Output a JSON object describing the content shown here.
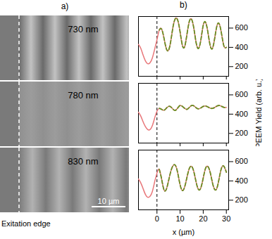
{
  "panels": {
    "a": {
      "label": "a)",
      "wavelengths": [
        "730 nm",
        "780 nm",
        "830 nm"
      ],
      "scale_bar": "10 µm",
      "edge_label": "Exitation edge"
    },
    "b": {
      "label": "b)"
    }
  },
  "chart_data": [
    {
      "type": "line",
      "tick_labels": "y",
      "edge_x": 0,
      "x": [
        -8,
        -7,
        -6,
        -5,
        -4,
        -3,
        -2,
        -1,
        0,
        1,
        2,
        3,
        4,
        5,
        6,
        7,
        8,
        9,
        10,
        11,
        12,
        13,
        14,
        15,
        16,
        17,
        18,
        19,
        20,
        21,
        22,
        23,
        24,
        25,
        26,
        27,
        28,
        29,
        30
      ],
      "xlim": [
        -8,
        31
      ],
      "xticks": [
        0,
        10,
        20,
        30
      ],
      "ylim": [
        100,
        720
      ],
      "yticks": [
        200,
        400,
        600
      ],
      "series": [
        {
          "color": "#e8777a",
          "line_style": "solid",
          "values": [
            430,
            390,
            320,
            260,
            230,
            240,
            290,
            380,
            480,
            580,
            590,
            500,
            390,
            370,
            470,
            620,
            700,
            680,
            560,
            420,
            410,
            540,
            670,
            690,
            590,
            440,
            390,
            480,
            630,
            660,
            560,
            420,
            390,
            500,
            630,
            640,
            530,
            410,
            400
          ]
        },
        {
          "color": "#6b8e23",
          "line_style": "dashed",
          "values": [
            null,
            null,
            null,
            null,
            null,
            null,
            null,
            null,
            null,
            580,
            590,
            500,
            390,
            370,
            470,
            620,
            700,
            680,
            560,
            420,
            410,
            540,
            670,
            690,
            590,
            440,
            390,
            480,
            630,
            660,
            560,
            420,
            390,
            500,
            630,
            640,
            530,
            410,
            400
          ]
        }
      ]
    },
    {
      "type": "line",
      "tick_labels": "y",
      "edge_x": 0,
      "ylabel": "PEEM Yield (arb. u.)",
      "x": [
        -8,
        -7,
        -6,
        -5,
        -4,
        -3,
        -2,
        -1,
        0,
        1,
        2,
        3,
        4,
        5,
        6,
        7,
        8,
        9,
        10,
        11,
        12,
        13,
        14,
        15,
        16,
        17,
        18,
        19,
        20,
        21,
        22,
        23,
        24,
        25,
        26,
        27,
        28,
        29,
        30
      ],
      "xlim": [
        -8,
        31
      ],
      "xticks": [
        0,
        10,
        20,
        30
      ],
      "ylim": [
        100,
        720
      ],
      "yticks": [
        200,
        400,
        600
      ],
      "series": [
        {
          "color": "#e8777a",
          "line_style": "solid",
          "values": [
            420,
            380,
            320,
            270,
            240,
            240,
            280,
            360,
            430,
            460,
            450,
            440,
            460,
            480,
            475,
            450,
            440,
            465,
            490,
            480,
            460,
            450,
            470,
            490,
            485,
            465,
            455,
            465,
            480,
            485,
            475,
            462,
            460,
            470,
            485,
            490,
            480,
            470,
            470
          ]
        },
        {
          "color": "#6b8e23",
          "line_style": "dashed",
          "values": [
            null,
            null,
            null,
            null,
            null,
            null,
            null,
            null,
            null,
            460,
            450,
            440,
            460,
            480,
            475,
            450,
            440,
            465,
            490,
            480,
            460,
            450,
            470,
            490,
            485,
            465,
            455,
            465,
            480,
            485,
            475,
            462,
            460,
            470,
            485,
            490,
            480,
            470,
            470
          ]
        }
      ]
    },
    {
      "type": "line",
      "edge_x": 0,
      "xlabel": "x (µm)",
      "x": [
        -8,
        -7,
        -6,
        -5,
        -4,
        -3,
        -2,
        -1,
        0,
        1,
        2,
        3,
        4,
        5,
        6,
        7,
        8,
        9,
        10,
        11,
        12,
        13,
        14,
        15,
        16,
        17,
        18,
        19,
        20,
        21,
        22,
        23,
        24,
        25,
        26,
        27,
        28,
        29,
        30
      ],
      "xlim": [
        -8,
        31
      ],
      "xticks": [
        0,
        10,
        20,
        30
      ],
      "ylim": [
        100,
        720
      ],
      "yticks": [
        200,
        400,
        600
      ],
      "series": [
        {
          "color": "#e8777a",
          "line_style": "solid",
          "values": [
            420,
            380,
            320,
            260,
            230,
            240,
            290,
            390,
            480,
            520,
            420,
            310,
            310,
            400,
            500,
            560,
            560,
            480,
            360,
            300,
            340,
            440,
            530,
            550,
            490,
            380,
            310,
            330,
            430,
            530,
            550,
            490,
            380,
            310,
            330,
            440,
            540,
            550,
            490
          ]
        },
        {
          "color": "#6b8e23",
          "line_style": "dashed",
          "values": [
            null,
            null,
            null,
            null,
            null,
            null,
            null,
            null,
            null,
            520,
            420,
            310,
            310,
            400,
            500,
            560,
            560,
            480,
            360,
            300,
            340,
            440,
            530,
            550,
            490,
            380,
            310,
            330,
            430,
            530,
            550,
            490,
            380,
            310,
            330,
            440,
            540,
            550,
            490
          ]
        }
      ]
    }
  ]
}
